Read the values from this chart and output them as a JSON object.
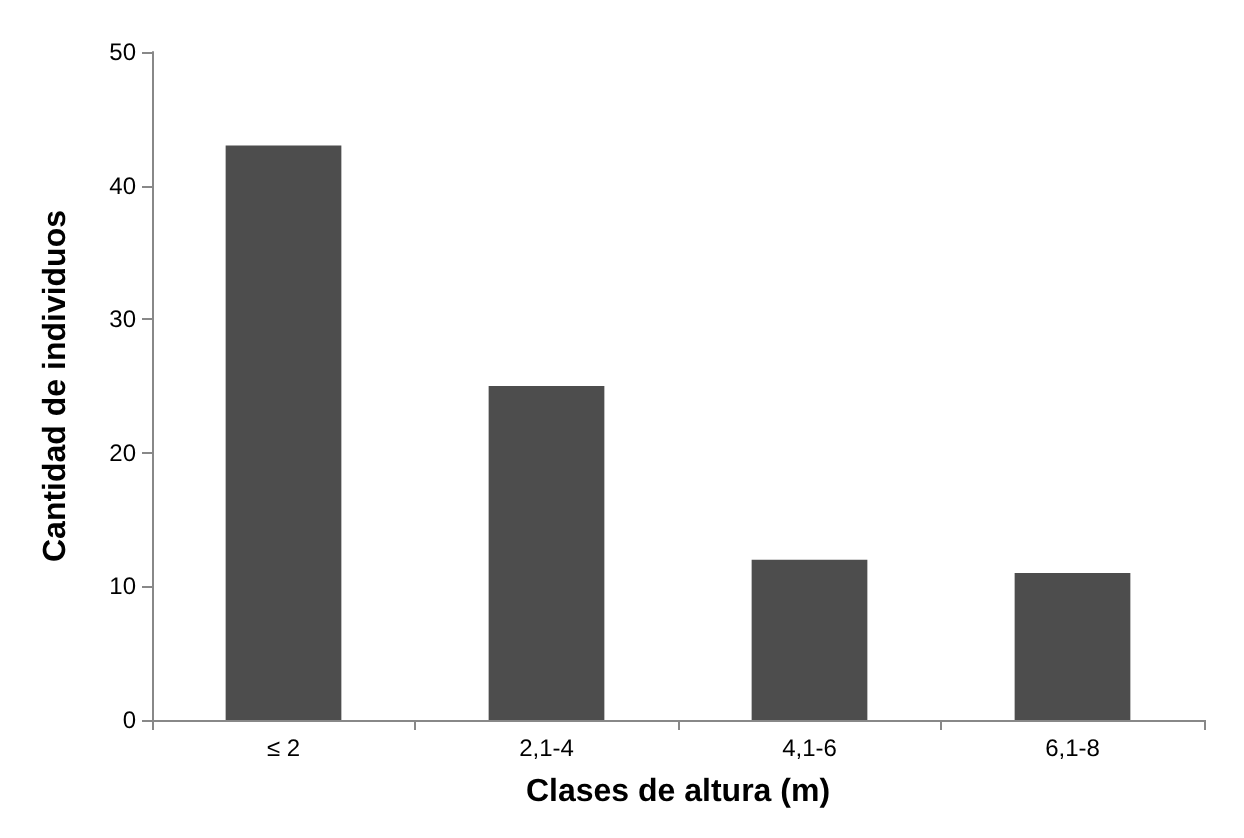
{
  "chart_data": {
    "type": "bar",
    "xlabel": "Clases de altura (m)",
    "ylabel": "Cantidad de individuos",
    "categories": [
      "≤ 2",
      "2,1-4",
      "4,1-6",
      "6,1-8"
    ],
    "values": [
      43,
      25,
      12,
      11
    ],
    "color": "#4d4d4d",
    "ylim": [
      0,
      50
    ],
    "yticks": [
      0,
      10,
      20,
      30,
      40,
      50
    ],
    "grid": false
  }
}
